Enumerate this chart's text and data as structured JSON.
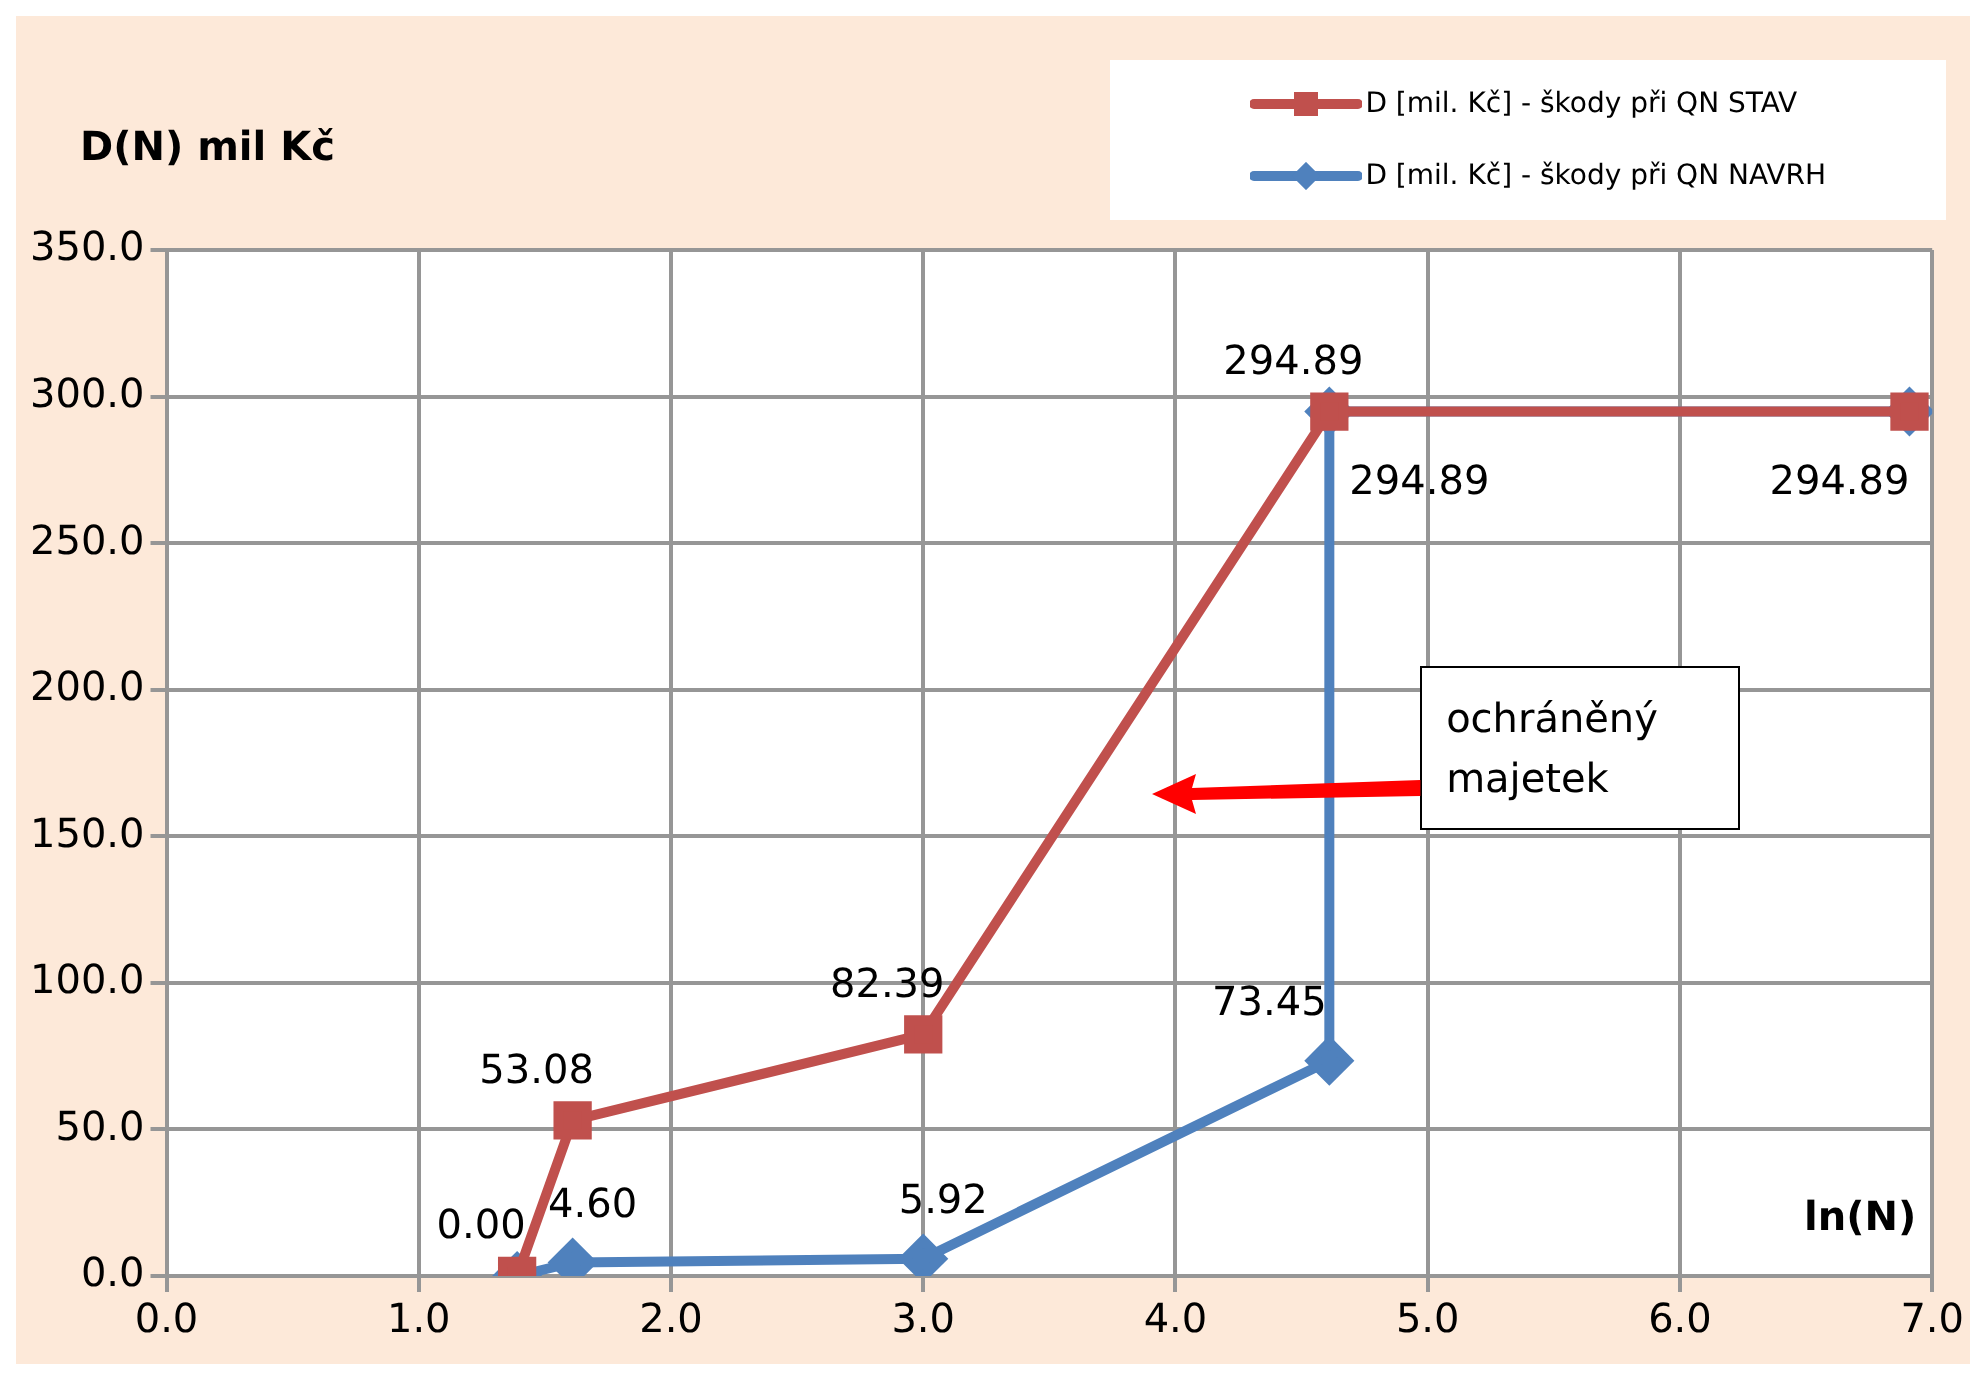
{
  "chart_data": {
    "type": "line",
    "xlabel": "ln(N)",
    "ylabel": "D(N) mil Kč",
    "xlim": [
      0,
      7
    ],
    "xticks": [
      {
        "value": 0,
        "label": "0.0"
      },
      {
        "value": 1,
        "label": "1.0"
      },
      {
        "value": 2,
        "label": "2.0"
      },
      {
        "value": 3,
        "label": "3.0"
      },
      {
        "value": 4,
        "label": "4.0"
      },
      {
        "value": 5,
        "label": "5.0"
      },
      {
        "value": 6,
        "label": "6.0"
      },
      {
        "value": 7,
        "label": "7.0"
      }
    ],
    "ylim": [
      0,
      350
    ],
    "yticks": [
      {
        "value": 0,
        "label": "0.0"
      },
      {
        "value": 50,
        "label": "50.0"
      },
      {
        "value": 100,
        "label": "100.0"
      },
      {
        "value": 150,
        "label": "150.0"
      },
      {
        "value": 200,
        "label": "200.0"
      },
      {
        "value": 250,
        "label": "250.0"
      },
      {
        "value": 300,
        "label": "300.0"
      },
      {
        "value": 350,
        "label": "350.0"
      }
    ],
    "grid": true,
    "legend": "top right",
    "series": [
      {
        "name": "D [mil. Kč] - škody při QN STAV",
        "color": "#c0504d",
        "marker": "square",
        "x": [
          1.39,
          1.61,
          3.0,
          4.61,
          6.91
        ],
        "values": [
          0.0,
          53.08,
          82.39,
          294.89,
          294.89
        ],
        "value_labels": [
          "0.00",
          "53.08",
          "82.39",
          "294.89",
          null
        ]
      },
      {
        "name": "D [mil. Kč] - škody při QN NAVRH",
        "color": "#4f81bd",
        "marker": "diamond",
        "x": [
          1.39,
          1.61,
          3.0,
          4.61,
          4.61,
          6.91
        ],
        "values": [
          0.0,
          4.6,
          5.92,
          73.45,
          294.89,
          294.89
        ],
        "value_labels": [
          null,
          "4.60",
          "5.92",
          "73.45",
          "294.89",
          "294.89"
        ]
      }
    ],
    "annotations": [
      "ochráněný majetek"
    ]
  }
}
